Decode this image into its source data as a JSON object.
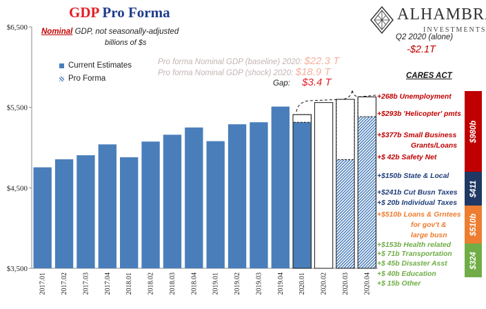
{
  "title": {
    "part1": "GDP",
    "part2": "Pro Forma"
  },
  "subtitle": {
    "highlight": "Nominal",
    "rest": " GDP, not seasonally-adjusted",
    "units": "billions of $s"
  },
  "legend": {
    "current": "Current Estimates",
    "proforma": "Pro Forma"
  },
  "pro_forma_lines": [
    {
      "label": "Pro forma Nominal GDP (baseline) 2020:",
      "value": "$22.3 T"
    },
    {
      "label": "Pro forma Nominal GDP (shock) 2020:",
      "value": "$18.9 T"
    }
  ],
  "gap": {
    "label": "Gap:",
    "value": "$3.4 T"
  },
  "logo": {
    "name": "ALHAMBRA",
    "sub": "INVESTMENTS"
  },
  "q2_note": {
    "label": "Q2 2020 (alone)",
    "value": "-$2.1T"
  },
  "cares_act": {
    "heading": "CARES ACT",
    "items": [
      {
        "text": "+268b Unemployment",
        "color": "red"
      },
      {
        "text": "+$293b 'Helicopter' pmts",
        "color": "red"
      },
      {
        "text": "+$377b Small Business",
        "color": "red"
      },
      {
        "text": "Grants/Loans",
        "color": "red",
        "indent": true
      },
      {
        "text": "+$ 42b Safety Net",
        "color": "red"
      },
      {
        "text": "+$150b State & Local",
        "color": "blue"
      },
      {
        "text": "+$241b Cut Busn Taxes",
        "color": "blue"
      },
      {
        "text": "+$ 20b Individual Taxes",
        "color": "blue"
      },
      {
        "text": "+$510b Loans & Grntees",
        "color": "orange"
      },
      {
        "text": "for gov't &",
        "color": "orange",
        "indent": true
      },
      {
        "text": "large busn",
        "color": "orange",
        "indent": true
      },
      {
        "text": "+$153b Health related",
        "color": "green"
      },
      {
        "text": "+$ 71b Transportation",
        "color": "green"
      },
      {
        "text": "+$ 45b Disaster Asst",
        "color": "green"
      },
      {
        "text": "+$ 40b Education",
        "color": "green"
      },
      {
        "text": "+$ 15b Other",
        "color": "green"
      }
    ]
  },
  "totals": [
    {
      "label": "$980b",
      "color": "#c00000"
    },
    {
      "label": "$411",
      "color": "#1f3864"
    },
    {
      "label": "$510b",
      "color": "#ed7d31"
    },
    {
      "label": "$324",
      "color": "#70ad47"
    }
  ],
  "colors": {
    "bar": "#4a7ebb",
    "title_red": "#e21f26",
    "title_blue": "#1f3d8c",
    "gap_red": "#e21f26"
  },
  "chart_data": {
    "type": "bar",
    "ylim": [
      3500,
      6500
    ],
    "yticks": [
      3500,
      4500,
      5500,
      6500
    ],
    "ytick_labels": [
      "$3,500",
      "$4,500",
      "$5,500",
      "$6,500"
    ],
    "categories": [
      "2017.01",
      "2017.02",
      "2017.03",
      "2017.04",
      "2018.01",
      "2018.02",
      "2018.03",
      "2018.04",
      "2019.01",
      "2019.02",
      "2019.03",
      "2019.04",
      "2020.01",
      "2020.02",
      "2020.03",
      "2020.04"
    ],
    "series": [
      {
        "name": "Current Estimates",
        "style": "solid",
        "values": [
          4755,
          4855,
          4905,
          5040,
          4880,
          5075,
          5160,
          5250,
          5080,
          5290,
          5315,
          5510,
          5315,
          null,
          null,
          null
        ]
      },
      {
        "name": "Pro Forma",
        "style": "hatch",
        "values": [
          null,
          null,
          null,
          null,
          null,
          null,
          null,
          null,
          null,
          null,
          null,
          null,
          null,
          null,
          4850,
          5385
        ]
      }
    ],
    "baseline_outline": [
      null,
      null,
      null,
      null,
      null,
      null,
      null,
      null,
      null,
      null,
      null,
      null,
      5410,
      5560,
      5600,
      5630
    ]
  }
}
